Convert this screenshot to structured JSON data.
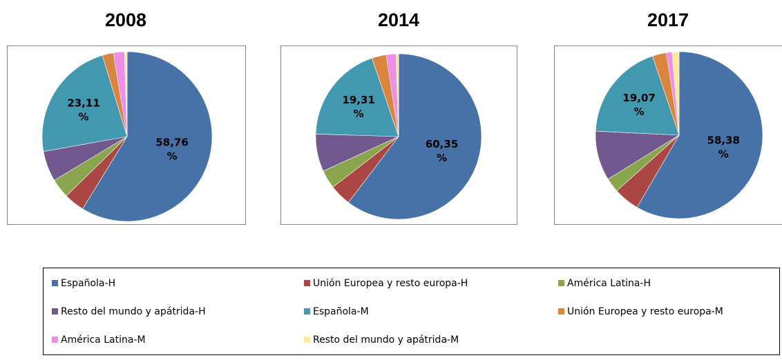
{
  "chart_data": [
    {
      "type": "pie",
      "title": "2008",
      "categories": [
        "Española-H",
        "Unión Europea y resto europa-H",
        "América Latina-H",
        "Resto del mundo y apátrida-H",
        "Española-M",
        "Unión Europea y resto europa-M",
        "América Latina-M",
        "Resto del mundo y apátrida-M"
      ],
      "values": [
        58.76,
        3.9,
        3.7,
        5.8,
        23.11,
        2.1,
        2.1,
        0.5
      ],
      "value_labels": [
        "58,76 %",
        null,
        null,
        null,
        "23,11 %",
        null,
        null,
        null
      ],
      "colors": [
        "#4672a8",
        "#aa4643",
        "#89a54e",
        "#71588f",
        "#4198af",
        "#db843d",
        "#ee8ee6",
        "#fde9a0"
      ]
    },
    {
      "type": "pie",
      "title": "2014",
      "categories": [
        "Española-H",
        "Unión Europea y resto europa-H",
        "América Latina-H",
        "Resto del mundo y apátrida-H",
        "Española-M",
        "Unión Europea y resto europa-M",
        "América Latina-M",
        "Resto del mundo y apátrida-M"
      ],
      "values": [
        60.35,
        4.2,
        3.6,
        7.34,
        19.31,
        2.8,
        1.9,
        0.5
      ],
      "value_labels": [
        "60,35 %",
        null,
        null,
        null,
        "19,31 %",
        null,
        null,
        null
      ],
      "colors": [
        "#4672a8",
        "#aa4643",
        "#89a54e",
        "#71588f",
        "#4198af",
        "#db843d",
        "#ee8ee6",
        "#fde9a0"
      ]
    },
    {
      "type": "pie",
      "title": "2017",
      "categories": [
        "Española-H",
        "Unión Europea y resto europa-H",
        "América Latina-H",
        "Resto del mundo y apátrida-H",
        "Española-M",
        "Unión Europea y resto europa-M",
        "América Latina-M",
        "Resto del mundo y apátrida-M"
      ],
      "values": [
        58.38,
        5.0,
        2.8,
        9.6,
        19.07,
        2.7,
        1.1,
        1.35
      ],
      "value_labels": [
        "58,38 %",
        null,
        null,
        null,
        "19,07 %",
        null,
        null,
        null
      ],
      "colors": [
        "#4672a8",
        "#aa4643",
        "#89a54e",
        "#71588f",
        "#4198af",
        "#db843d",
        "#ee8ee6",
        "#fde9a0"
      ]
    }
  ]
}
